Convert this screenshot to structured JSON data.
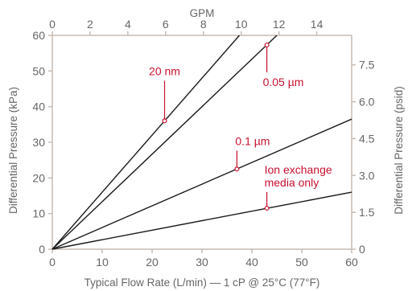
{
  "chart_data": {
    "type": "line",
    "xlabel": "Typical Flow Rate (L/min) — 1 cP @ 25°C (77°F)",
    "ylabel": "Differential Pressure (kPa)",
    "top_xlabel": "GPM",
    "right_ylabel": "Differential Pressure (psid)",
    "xlim": [
      0,
      60
    ],
    "ylim": [
      0,
      60
    ],
    "x_ticks": [
      "0",
      "10",
      "20",
      "30",
      "40",
      "50",
      "60"
    ],
    "y_ticks": [
      "0",
      "10",
      "20",
      "30",
      "40",
      "50",
      "60"
    ],
    "top_x_ticks": [
      "0",
      "2",
      "4",
      "6",
      "8",
      "10",
      "12",
      "14"
    ],
    "top_x_tick_values": [
      0,
      2,
      4,
      6,
      8,
      10,
      12,
      14
    ],
    "right_y_ticks": [
      "0",
      "1.5",
      "3.0",
      "4.5",
      "6.0",
      "7.5"
    ],
    "right_y_tick_values": [
      0,
      1.5,
      3.0,
      4.5,
      6.0,
      7.5
    ],
    "grid": false,
    "series": [
      {
        "name": "20 nm",
        "x": [
          0,
          37.5
        ],
        "y": [
          0,
          60
        ],
        "marker": [
          22.5,
          36
        ]
      },
      {
        "name": "0.05 µm",
        "x": [
          0,
          45
        ],
        "y": [
          0,
          60
        ],
        "marker": [
          43,
          57.3
        ]
      },
      {
        "name": "0.1 µm",
        "x": [
          0,
          60
        ],
        "y": [
          0,
          36.5
        ],
        "marker": [
          37,
          22.5
        ]
      },
      {
        "name": "Ion exchange media only",
        "x": [
          0,
          60
        ],
        "y": [
          0,
          16
        ],
        "marker": [
          43,
          11.5
        ]
      }
    ],
    "annotations": [
      {
        "series": 0,
        "lines": [
          "20 nm"
        ]
      },
      {
        "series": 1,
        "lines": [
          "0.05 µm"
        ]
      },
      {
        "series": 2,
        "lines": [
          "0.1 µm"
        ]
      },
      {
        "series": 3,
        "lines": [
          "Ion exchange",
          "media only"
        ]
      }
    ]
  },
  "colors": {
    "series_line": "#1a1a1a",
    "annotation": "#c8102e",
    "axis": "#c7bcb3",
    "text": "#666666"
  }
}
